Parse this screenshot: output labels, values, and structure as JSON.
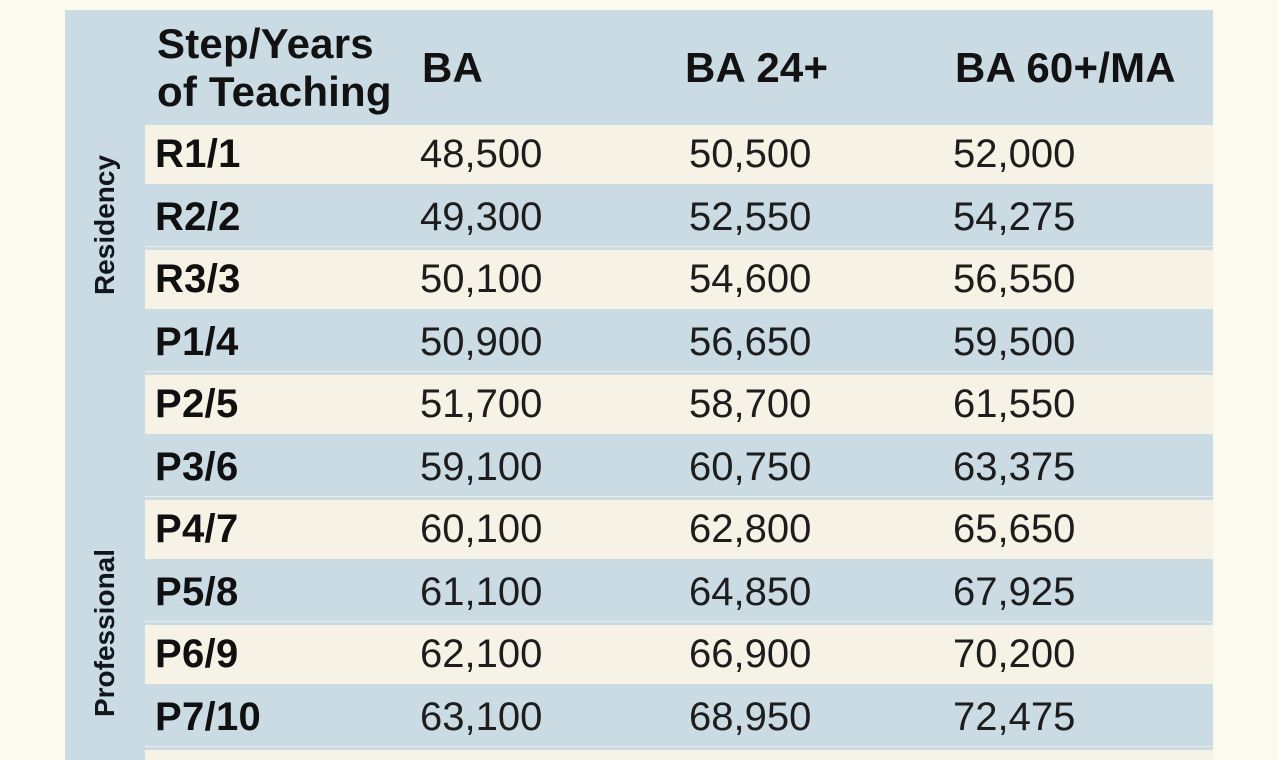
{
  "table": {
    "colors": {
      "panel_blue": "#CBDBE3",
      "stripe_cream": "#F6F3E6",
      "page_background": "#FCFAEE",
      "text": "#161616"
    },
    "header": {
      "col1_line1": "Step/Years",
      "col1_line2": "of Teaching",
      "col2": "BA",
      "col3": "BA 24+",
      "col4": "BA 60+/MA"
    },
    "group_labels": {
      "residency": "Residency",
      "professional": "Professional"
    },
    "rows": [
      {
        "step": "R1/1",
        "ba": "48,500",
        "ba24": "50,500",
        "ba60ma": "52,000"
      },
      {
        "step": "R2/2",
        "ba": "49,300",
        "ba24": "52,550",
        "ba60ma": "54,275"
      },
      {
        "step": "R3/3",
        "ba": "50,100",
        "ba24": "54,600",
        "ba60ma": "56,550"
      },
      {
        "step": "P1/4",
        "ba": "50,900",
        "ba24": "56,650",
        "ba60ma": "59,500"
      },
      {
        "step": "P2/5",
        "ba": "51,700",
        "ba24": "58,700",
        "ba60ma": "61,550"
      },
      {
        "step": "P3/6",
        "ba": "59,100",
        "ba24": "60,750",
        "ba60ma": "63,375"
      },
      {
        "step": "P4/7",
        "ba": "60,100",
        "ba24": "62,800",
        "ba60ma": "65,650"
      },
      {
        "step": "P5/8",
        "ba": "61,100",
        "ba24": "64,850",
        "ba60ma": "67,925"
      },
      {
        "step": "P6/9",
        "ba": "62,100",
        "ba24": "66,900",
        "ba60ma": "70,200"
      },
      {
        "step": "P7/10",
        "ba": "63,100",
        "ba24": "68,950",
        "ba60ma": "72,475"
      }
    ]
  }
}
